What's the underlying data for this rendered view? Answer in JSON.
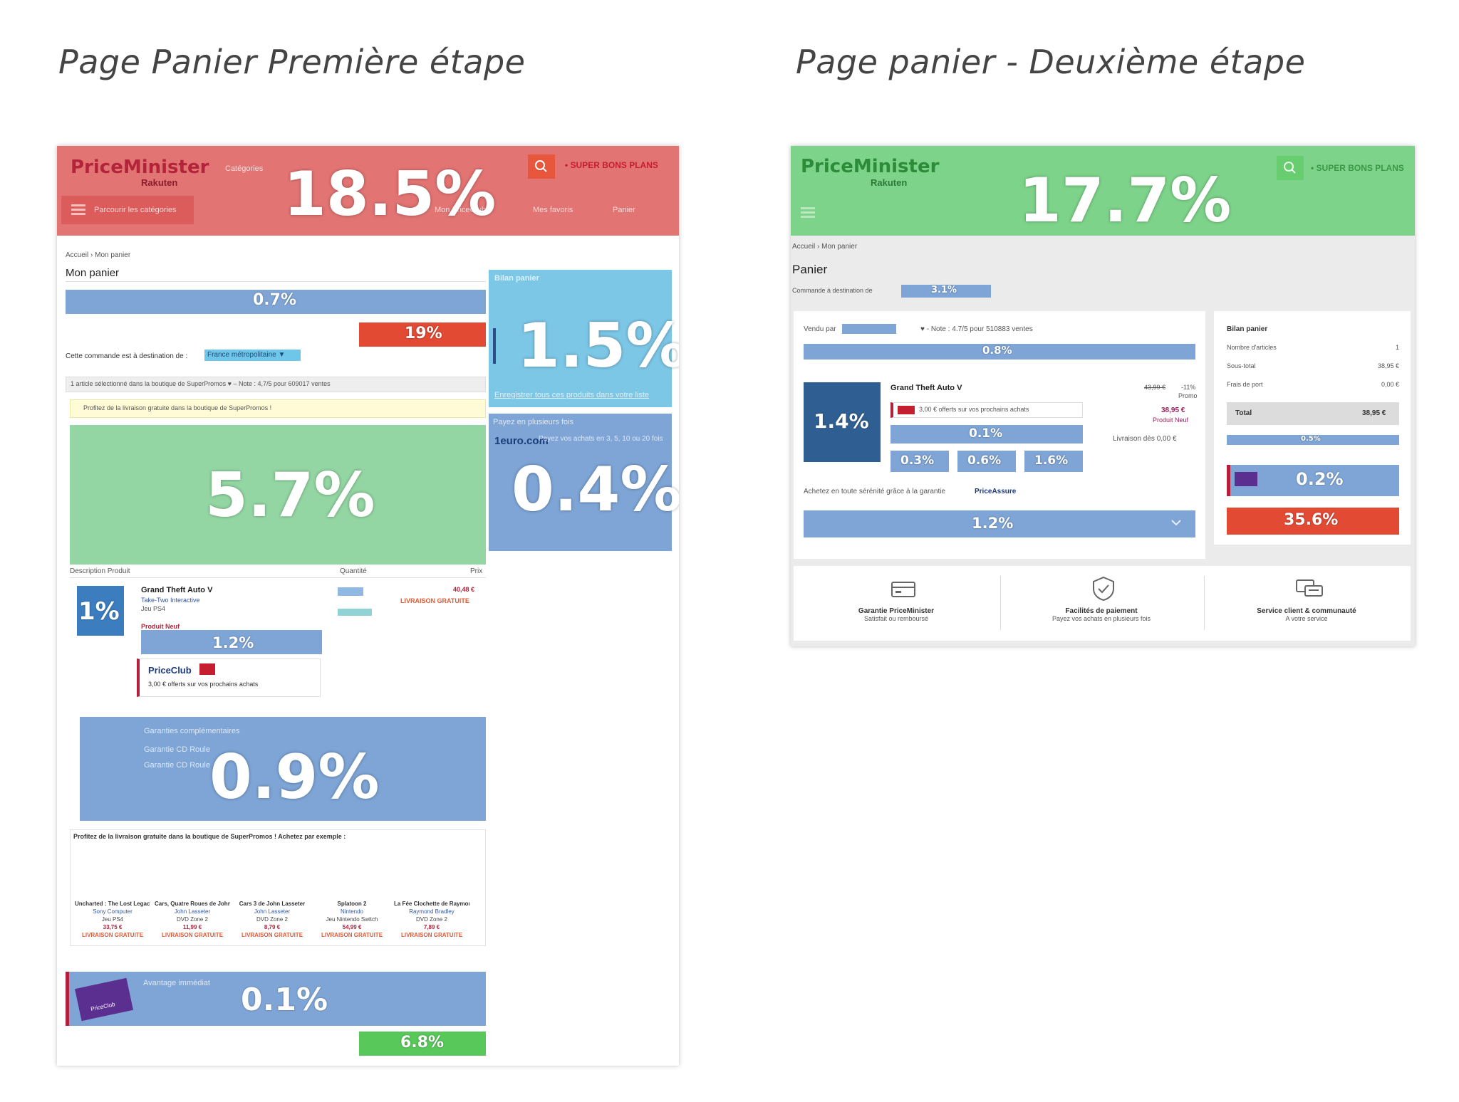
{
  "headings": {
    "left": "Page Panier Première étape",
    "right": "Page panier - Deuxième étape"
  },
  "left_page": {
    "header": {
      "logo_top": "PriceMinister",
      "logo_bottom": "Rakuten",
      "search_category": "Catégories",
      "super_bons_plans": "• SUPER BONS PLANS",
      "nav_categories": "Parcourir les catégories",
      "nav_priceclub": "Mon PriceClub",
      "nav_favoris": "Mes favoris",
      "nav_panier": "Panier",
      "percent": "18.5%"
    },
    "breadcrumb": "Accueil › Mon panier",
    "page_title": "Mon panier",
    "info_bar_percent": "0.7%",
    "order_button_percent": "19%",
    "destination_label": "Cette commande est à destination de :",
    "destination_value": "France métropolitaine ▼",
    "bilan": {
      "title": "Bilan panier",
      "percent": "1.5%",
      "footer": "Enregistrer tous ces produits dans votre liste"
    },
    "seller_line": "1 article sélectionné dans la boutique de  SuperPromos  ♥  – Note : 4,7/5 pour 609017 ventes",
    "free_shipping_notice": "Profitez de la livraison gratuite dans la boutique de SuperPromos !",
    "delivery_percent": "5.7%",
    "payment": {
      "title": "Payez en plusieurs fois",
      "brand": "1euro.com",
      "text": "Payez vos achats en 3, 5, 10 ou 20 fois",
      "percent": "0.4%"
    },
    "table_headers": {
      "description": "Description Produit",
      "quantity": "Quantité",
      "price": "Prix"
    },
    "product": {
      "name": "Grand Theft Auto V",
      "publisher": "Take-Two Interactive",
      "platform": "Jeu PS4",
      "state": "Produit Neuf",
      "price": "40,48 €",
      "shipping": "LIVRAISON GRATUITE",
      "thumb_percent": "1%",
      "desc_percent": "1.2%"
    },
    "priceclub_box": {
      "brand": "PriceClub",
      "text": "3,00 € offerts sur vos prochains achats"
    },
    "guarantees": {
      "title": "Garanties complémentaires",
      "option1": "Garantie CD Roule",
      "option2": "Garantie CD Roule",
      "percent": "0.9%"
    },
    "upsell": {
      "title": "Profitez de la livraison gratuite dans la boutique de SuperPromos ! Achetez par exemple :",
      "items": [
        {
          "name": "Uncharted : The Lost Legacy",
          "brand": "Sony Computer",
          "type": "Jeu PS4",
          "price": "33,75 €",
          "shipping": "LIVRAISON GRATUITE"
        },
        {
          "name": "Cars, Quatre Roues de John Lasseter",
          "brand": "John Lasseter",
          "type": "DVD Zone 2",
          "price": "11,99 €",
          "shipping": "LIVRAISON GRATUITE"
        },
        {
          "name": "Cars 3 de John Lasseter",
          "brand": "John Lasseter",
          "type": "DVD Zone 2",
          "price": "8,79 €",
          "shipping": "LIVRAISON GRATUITE"
        },
        {
          "name": "Splatoon 2",
          "brand": "Nintendo",
          "type": "Jeu Nintendo Switch",
          "price": "54,99 €",
          "shipping": "LIVRAISON GRATUITE"
        },
        {
          "name": "La Fée Clochette de Raymond Bradley",
          "brand": "Raymond Bradley",
          "type": "DVD Zone 2",
          "price": "7,89 €",
          "shipping": "LIVRAISON GRATUITE"
        }
      ]
    },
    "immediate": {
      "title": "Avantage immédiat",
      "badge": "PriceClub",
      "percent": "0.1%"
    },
    "checkout_percent": "6.8%"
  },
  "right_page": {
    "header": {
      "logo_top": "PriceMinister",
      "logo_bottom": "Rakuten",
      "super_bons_plans": "• SUPER BONS PLANS",
      "percent": "17.7%"
    },
    "breadcrumb": "Accueil › Mon panier",
    "page_title": "Panier",
    "destination_label": "Commande à destination de",
    "destination_percent": "3.1%",
    "seller_line": "Vendu par",
    "seller_note": "♥ - Note : 4.7/5 pour 510883 ventes",
    "free_shipping_percent": "0.8%",
    "product": {
      "name": "Grand Theft Auto V",
      "old_price": "43,99 €",
      "discount": "-11%",
      "promo": "Promo",
      "price": "38,95 €",
      "state": "Produit Neuf",
      "delivery": "Livraison dès 0,00 €",
      "offer": "3,00 € offerts sur vos prochains achats",
      "thumb_percent": "1.4%",
      "qty_percent": "0.1%",
      "btn1": "0.3%",
      "btn2": "0.6%",
      "btn3": "1.6%"
    },
    "guarantee_line": "Achetez en toute sérénité grâce à la garantie",
    "guarantee_brand": "PriceAssure",
    "guarantee_percent": "1.2%",
    "bilan": {
      "title": "Bilan panier",
      "rows": [
        {
          "label": "Nombre d'articles",
          "value": "1"
        },
        {
          "label": "Sous-total",
          "value": "38,95 €"
        },
        {
          "label": "Frais de port",
          "value": "0,00 €"
        }
      ],
      "total_label": "Total",
      "total_value": "38,95 €",
      "promo_percent": "0.5%",
      "priceclub_percent": "0.2%",
      "order_percent": "35.6%"
    },
    "reassurance": [
      {
        "title": "Garantie PriceMinister",
        "sub": "Satisfait ou remboursé"
      },
      {
        "title": "Facilités de paiement",
        "sub": "Payez vos achats en plusieurs fois"
      },
      {
        "title": "Service client & communauté",
        "sub": "A votre service"
      }
    ]
  },
  "colors": {
    "red_zone": "#e27473",
    "green_zone": "#7dd38a",
    "blue_zone": "#7ea5d6",
    "light_blue_zone": "#7cc6e6",
    "orange_button": "#e24a33",
    "checkout_green": "#59c85a"
  }
}
